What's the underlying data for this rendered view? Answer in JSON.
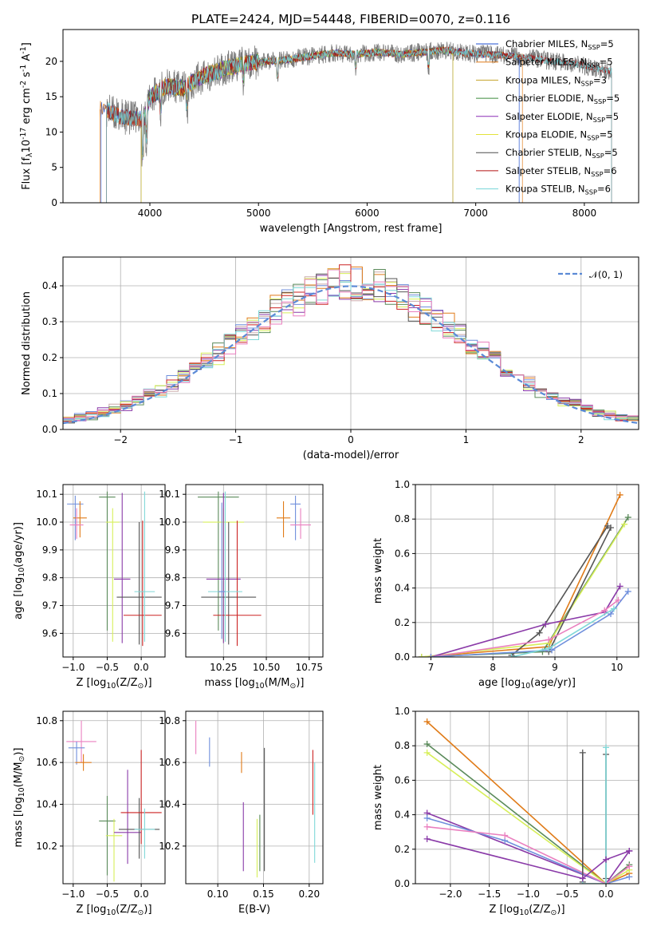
{
  "title": "PLATE=2424, MJD=54448, FIBERID=0070, z=0.116",
  "colors": {
    "cm": "#1f4fd0",
    "sm": "#e07b18",
    "km": "#c5a32a",
    "ce": "#3c8a3c",
    "se": "#8b2fb5",
    "ke": "#e3e33a",
    "cs": "#4d4d4d",
    "ss": "#b31212",
    "ks": "#74d4d8",
    "c1": "#6f8fdc",
    "c2": "#e07b18",
    "c3": "#c9a9a9",
    "c4": "#5a8a5a",
    "c5": "#8a3aa8",
    "c6": "#d7ef5a",
    "c7": "#555555",
    "c8": "#cc2222",
    "c9": "#7fd8d8",
    "c10": "#ea7fbf"
  },
  "chart_data": [
    {
      "id": "spectrum",
      "type": "line",
      "xlabel": "wavelength [Angstrom, rest frame]",
      "ylabel": "Flux [f$_{\\lambda}$10$^{-17}$ erg cm$^{-2}$ s$^{-1}$ A$^{-1}$]",
      "xlim": [
        3200,
        8500
      ],
      "ylim": [
        0,
        24.5
      ],
      "xticks": [
        "4000",
        "5000",
        "6000",
        "7000",
        "8000"
      ],
      "xtickvals": [
        4000,
        5000,
        6000,
        7000,
        8000
      ],
      "yticks": [
        "0",
        "5",
        "10",
        "15",
        "20"
      ],
      "ytickvals": [
        0,
        5,
        10,
        15,
        20
      ],
      "grid": false,
      "legend_position": "upper-right",
      "continuum": [
        [
          3600,
          13.2
        ],
        [
          3700,
          12.3
        ],
        [
          3800,
          12.0
        ],
        [
          3900,
          12.0
        ],
        [
          3950,
          11.8
        ],
        [
          4000,
          15.0
        ],
        [
          4150,
          16.5
        ],
        [
          4300,
          16.2
        ],
        [
          4500,
          18.0
        ],
        [
          4700,
          19.0
        ],
        [
          4900,
          19.8
        ],
        [
          5100,
          20.0
        ],
        [
          5300,
          20.3
        ],
        [
          5500,
          20.8
        ],
        [
          5700,
          21.2
        ],
        [
          5900,
          21.0
        ],
        [
          6100,
          21.3
        ],
        [
          6300,
          21.0
        ],
        [
          6500,
          21.3
        ],
        [
          6700,
          21.6
        ],
        [
          6900,
          21.2
        ],
        [
          7100,
          21.0
        ],
        [
          7300,
          20.8
        ],
        [
          7500,
          20.5
        ],
        [
          7700,
          20.0
        ],
        [
          7900,
          19.7
        ],
        [
          8100,
          19.0
        ],
        [
          8250,
          18.6
        ]
      ],
      "series": [
        {
          "name": "Chabrier MILES, N$_{SSP}$=5",
          "color": "#1f4fd0",
          "range": [
            3550,
            7400
          ]
        },
        {
          "name": "Salpeter MILES, N$_{SSP}$=5",
          "color": "#e07b18",
          "range": [
            3540,
            7430
          ]
        },
        {
          "name": "Kroupa MILES, N$_{SSP}$=3",
          "color": "#c5a32a",
          "range": [
            3920,
            6790
          ]
        },
        {
          "name": "Chabrier ELODIE, N$_{SSP}$=5",
          "color": "#3c8a3c",
          "range": [
            3920,
            6790
          ]
        },
        {
          "name": "Salpeter ELODIE, N$_{SSP}$=5",
          "color": "#8b2fb5",
          "range": [
            3920,
            6790
          ]
        },
        {
          "name": "Kroupa ELODIE, N$_{SSP}$=5",
          "color": "#e3e33a",
          "range": [
            3920,
            6790
          ]
        },
        {
          "name": "Chabrier STELIB, N$_{SSP}$=5",
          "color": "#4d4d4d",
          "range": [
            3600,
            8250
          ]
        },
        {
          "name": "Salpeter STELIB, N$_{SSP}$=6",
          "color": "#b31212",
          "range": [
            3600,
            8250
          ]
        },
        {
          "name": "Kroupa STELIB, N$_{SSP}$=6",
          "color": "#74d4d8",
          "range": [
            3600,
            8250
          ]
        }
      ]
    },
    {
      "id": "residuals",
      "type": "line",
      "xlabel": "(data-model)/error",
      "ylabel": "Normed distribution",
      "xlim": [
        -2.5,
        2.5
      ],
      "ylim": [
        0,
        0.48
      ],
      "xticks": [
        "−2",
        "−1",
        "0",
        "1",
        "2"
      ],
      "xtickvals": [
        -2,
        -1,
        0,
        1,
        2
      ],
      "yticks": [
        "0.0",
        "0.1",
        "0.2",
        "0.3",
        "0.4"
      ],
      "ytickvals": [
        0,
        0.1,
        0.2,
        0.3,
        0.4
      ],
      "grid": true,
      "legend_position": "upper-right",
      "reference": {
        "name": "$\\mathcal{N}(0,1)$",
        "label": "𝒩(0, 1)",
        "style": "dashed",
        "color": "#5b8ad6"
      },
      "hist_colors": [
        "#6f8fdc",
        "#e07b18",
        "#c9a9a9",
        "#5a8a5a",
        "#8a3aa8",
        "#d7ef5a",
        "#555555",
        "#cc2222",
        "#7fd8d8",
        "#ea7fbf"
      ],
      "bin_edges_range": [
        -2.5,
        2.5
      ],
      "bins": 50
    },
    {
      "id": "age-vs-Z",
      "type": "scatter",
      "xlabel": "Z [log$_{10}$(Z/Z$_\\odot$)]",
      "ylabel": "age  [log$_{10}$(age/yr)]",
      "xlim": [
        -1.15,
        0.35
      ],
      "ylim": [
        9.515,
        10.135
      ],
      "xticks": [
        "−1.0",
        "−0.5",
        "0.0"
      ],
      "xtickvals": [
        -1,
        -0.5,
        0
      ],
      "yticks": [
        "9.6",
        "9.7",
        "9.8",
        "9.9",
        "10.0",
        "10.1"
      ],
      "ytickvals": [
        9.6,
        9.7,
        9.8,
        9.9,
        10.0,
        10.1
      ],
      "grid": true,
      "points": [
        {
          "x": -0.97,
          "y": 10.065,
          "xerr": 0.12,
          "yerr": [
            0.13,
            0.03
          ],
          "c": "#6f8fdc"
        },
        {
          "x": -0.9,
          "y": 10.015,
          "xerr": 0.1,
          "yerr": [
            0.07,
            0.06
          ],
          "c": "#e07b18"
        },
        {
          "x": -0.95,
          "y": 9.99,
          "xerr": 0.1,
          "yerr": [
            0.05,
            0.06
          ],
          "c": "#ea7fbf"
        },
        {
          "x": -0.5,
          "y": 10.09,
          "xerr": 0.12,
          "yerr": [
            0.48,
            0.02
          ],
          "c": "#5a8a5a"
        },
        {
          "x": -0.42,
          "y": 10.0,
          "xerr": 0.1,
          "yerr": [
            0.43,
            0.05
          ],
          "c": "#d7ef5a"
        },
        {
          "x": -0.28,
          "y": 9.795,
          "xerr": 0.12,
          "yerr": [
            0.23,
            0.31
          ],
          "c": "#8a3aa8"
        },
        {
          "x": -0.03,
          "y": 9.73,
          "xerr": 0.33,
          "yerr": [
            0.17,
            0.27
          ],
          "c": "#555555"
        },
        {
          "x": 0.02,
          "y": 9.665,
          "xerr": 0.28,
          "yerr": [
            0.11,
            0.34
          ],
          "c": "#cc2222"
        },
        {
          "x": 0.05,
          "y": 9.75,
          "xerr": 0.15,
          "yerr": [
            0.18,
            0.36
          ],
          "c": "#7fd8d8"
        }
      ]
    },
    {
      "id": "age-vs-mass",
      "type": "scatter",
      "xlabel": "mass [log$_{10}$(M/M$_\\odot$)]",
      "ylabel": "",
      "xlim": [
        10.03,
        10.83
      ],
      "ylim": [
        9.515,
        10.135
      ],
      "xticks": [
        "10.25",
        "10.50",
        "10.75"
      ],
      "xtickvals": [
        10.25,
        10.5,
        10.75
      ],
      "yticks": [
        "9.6",
        "9.7",
        "9.8",
        "9.9",
        "10.0",
        "10.1"
      ],
      "ytickvals": [
        9.6,
        9.7,
        9.8,
        9.9,
        10.0,
        10.1
      ],
      "grid": true,
      "points": [
        {
          "x": 10.67,
          "y": 10.065,
          "xerr": 0.03,
          "yerr": [
            0.13,
            0.03
          ],
          "c": "#6f8fdc"
        },
        {
          "x": 10.6,
          "y": 10.015,
          "xerr": 0.04,
          "yerr": [
            0.07,
            0.06
          ],
          "c": "#e07b18"
        },
        {
          "x": 10.7,
          "y": 9.99,
          "xerr": 0.06,
          "yerr": [
            0.05,
            0.06
          ],
          "c": "#ea7fbf"
        },
        {
          "x": 10.22,
          "y": 10.09,
          "xerr": 0.12,
          "yerr": [
            0.48,
            0.02
          ],
          "c": "#5a8a5a"
        },
        {
          "x": 10.25,
          "y": 10.0,
          "xerr": 0.12,
          "yerr": [
            0.43,
            0.05
          ],
          "c": "#d7ef5a"
        },
        {
          "x": 10.25,
          "y": 9.795,
          "xerr": 0.1,
          "yerr": [
            0.23,
            0.31
          ],
          "c": "#8a3aa8"
        },
        {
          "x": 10.28,
          "y": 9.73,
          "xerr": 0.16,
          "yerr": [
            0.17,
            0.27
          ],
          "c": "#555555"
        },
        {
          "x": 10.33,
          "y": 9.665,
          "xerr": 0.14,
          "yerr": [
            0.11,
            0.34
          ],
          "c": "#cc2222"
        },
        {
          "x": 10.26,
          "y": 9.75,
          "xerr": 0.1,
          "yerr": [
            0.18,
            0.36
          ],
          "c": "#7fd8d8"
        },
        {
          "x": 10.24,
          "y": 9.75,
          "xerr": 0.02,
          "yerr": [
            0.17,
            0.32
          ],
          "c": "#6f8fdc"
        }
      ]
    },
    {
      "id": "massweight-vs-age",
      "type": "line",
      "xlabel": "age  [log$_{10}$(age/yr)]",
      "ylabel": "mass weight",
      "xlim": [
        6.75,
        10.35
      ],
      "ylim": [
        0,
        1.0
      ],
      "xticks": [
        "7",
        "8",
        "9",
        "10"
      ],
      "xtickvals": [
        7,
        8,
        9,
        10
      ],
      "yticks": [
        "0.0",
        "0.2",
        "0.4",
        "0.6",
        "0.8",
        "1.0"
      ],
      "ytickvals": [
        0,
        0.2,
        0.4,
        0.6,
        0.8,
        1.0
      ],
      "grid": true,
      "series": [
        {
          "c": "#e07b18",
          "x": [
            6.85,
            8.9,
            10.05
          ],
          "y": [
            0.0,
            0.06,
            0.94
          ]
        },
        {
          "c": "#5a8a5a",
          "x": [
            6.85,
            8.8,
            10.18
          ],
          "y": [
            0.0,
            0.03,
            0.81
          ]
        },
        {
          "c": "#d7ef5a",
          "x": [
            6.85,
            8.9,
            10.12
          ],
          "y": [
            0.0,
            0.08,
            0.77
          ]
        },
        {
          "c": "#555555",
          "x": [
            8.3,
            8.75,
            9.85
          ],
          "y": [
            0.01,
            0.14,
            0.76
          ]
        },
        {
          "c": "#555555",
          "x": [
            8.9,
            9.9
          ],
          "y": [
            0.03,
            0.75
          ]
        },
        {
          "c": "#8a3aa8",
          "x": [
            7.0,
            8.85,
            9.8,
            10.05
          ],
          "y": [
            0.0,
            0.19,
            0.26,
            0.41
          ]
        },
        {
          "c": "#ea7fbf",
          "x": [
            7.0,
            8.9,
            9.8,
            10.02
          ],
          "y": [
            0.0,
            0.1,
            0.27,
            0.33
          ]
        },
        {
          "c": "#6f8fdc",
          "x": [
            7.0,
            8.95,
            9.9,
            10.18
          ],
          "y": [
            0.0,
            0.04,
            0.25,
            0.38
          ]
        },
        {
          "c": "#7fd8d8",
          "x": [
            8.3,
            8.9,
            9.95
          ],
          "y": [
            0.0,
            0.05,
            0.28
          ]
        }
      ]
    },
    {
      "id": "mass-vs-Z",
      "type": "scatter",
      "xlabel": "Z [log$_{10}$(Z/Z$_\\odot$)]",
      "ylabel": "mass [log$_{10}$(M/M$_\\odot$)]",
      "xlim": [
        -1.15,
        0.35
      ],
      "ylim": [
        10.02,
        10.845
      ],
      "xticks": [
        "−1.0",
        "−0.5",
        "0.0"
      ],
      "xtickvals": [
        -1,
        -0.5,
        0
      ],
      "yticks": [
        "10.2",
        "10.4",
        "10.6",
        "10.8"
      ],
      "ytickvals": [
        10.2,
        10.4,
        10.6,
        10.8
      ],
      "grid": true,
      "points": [
        {
          "x": -0.88,
          "y": 10.7,
          "xerr": 0.22,
          "yerr": [
            0.1,
            0.1
          ],
          "c": "#ea7fbf"
        },
        {
          "x": -0.95,
          "y": 10.67,
          "xerr": 0.12,
          "yerr": [
            0.08,
            0.03
          ],
          "c": "#6f8fdc"
        },
        {
          "x": -0.85,
          "y": 10.6,
          "xerr": 0.12,
          "yerr": [
            0.04,
            0.04
          ],
          "c": "#e07b18"
        },
        {
          "x": -0.5,
          "y": 10.32,
          "xerr": 0.12,
          "yerr": [
            0.26,
            0.12
          ],
          "c": "#5a8a5a"
        },
        {
          "x": -0.4,
          "y": 10.25,
          "xerr": 0.12,
          "yerr": [
            0.22,
            0.08
          ],
          "c": "#d7ef5a"
        },
        {
          "x": -0.2,
          "y": 10.265,
          "xerr": 0.2,
          "yerr": [
            0.15,
            0.3
          ],
          "c": "#8a3aa8"
        },
        {
          "x": -0.03,
          "y": 10.28,
          "xerr": 0.3,
          "yerr": [
            0.14,
            0.15
          ],
          "c": "#555555"
        },
        {
          "x": 0.0,
          "y": 10.36,
          "xerr": 0.3,
          "yerr": [
            0.15,
            0.3
          ],
          "c": "#cc2222"
        },
        {
          "x": 0.05,
          "y": 10.28,
          "xerr": 0.15,
          "yerr": [
            0.14,
            0.1
          ],
          "c": "#7fd8d8"
        }
      ]
    },
    {
      "id": "mass-vs-ebv",
      "type": "scatter",
      "xlabel": "E(B-V)",
      "ylabel": "",
      "xlim": [
        0.065,
        0.215
      ],
      "ylim": [
        10.02,
        10.845
      ],
      "xticks": [
        "0.10",
        "0.15",
        "0.20"
      ],
      "xtickvals": [
        0.1,
        0.15,
        0.2
      ],
      "yticks": [
        "10.2",
        "10.4",
        "10.6",
        "10.8"
      ],
      "ytickvals": [
        10.2,
        10.4,
        10.6,
        10.8
      ],
      "grid": true,
      "points": [
        {
          "x": 0.076,
          "y": 10.72,
          "yerr": [
            0.08,
            0.08
          ],
          "c": "#ea7fbf"
        },
        {
          "x": 0.091,
          "y": 10.65,
          "yerr": [
            0.07,
            0.07
          ],
          "c": "#6f8fdc"
        },
        {
          "x": 0.126,
          "y": 10.6,
          "yerr": [
            0.05,
            0.05
          ],
          "c": "#e07b18"
        },
        {
          "x": 0.128,
          "y": 10.25,
          "yerr": [
            0.17,
            0.16
          ],
          "c": "#8a3aa8"
        },
        {
          "x": 0.143,
          "y": 10.25,
          "yerr": [
            0.2,
            0.08
          ],
          "c": "#d7ef5a"
        },
        {
          "x": 0.146,
          "y": 10.28,
          "yerr": [
            0.2,
            0.07
          ],
          "c": "#5a8a5a"
        },
        {
          "x": 0.151,
          "y": 10.4,
          "yerr": [
            0.32,
            0.27
          ],
          "c": "#555555"
        },
        {
          "x": 0.204,
          "y": 10.55,
          "yerr": [
            0.2,
            0.11
          ],
          "c": "#cc2222"
        },
        {
          "x": 0.206,
          "y": 10.4,
          "yerr": [
            0.28,
            0.2
          ],
          "c": "#7fd8d8"
        }
      ]
    },
    {
      "id": "massweight-vs-Z",
      "type": "line",
      "xlabel": "Z [log$_{10}$(Z/Z$_\\odot$)]",
      "ylabel": "mass weight",
      "xlim": [
        -2.45,
        0.42
      ],
      "ylim": [
        0,
        1.0
      ],
      "xticks": [
        "−2.0",
        "−1.5",
        "−1.0",
        "−0.5",
        "0.0"
      ],
      "xtickvals": [
        -2,
        -1.5,
        -1,
        -0.5,
        0
      ],
      "yticks": [
        "0.0",
        "0.2",
        "0.4",
        "0.6",
        "0.8",
        "1.0"
      ],
      "ytickvals": [
        0,
        0.2,
        0.4,
        0.6,
        0.8,
        1.0
      ],
      "grid": true,
      "series": [
        {
          "c": "#e07b18",
          "x": [
            -2.3,
            0.0,
            0.3
          ],
          "y": [
            0.94,
            0.0,
            0.06
          ]
        },
        {
          "c": "#5a8a5a",
          "x": [
            -2.3,
            0.0,
            0.3
          ],
          "y": [
            0.81,
            0.0,
            0.11
          ]
        },
        {
          "c": "#d7ef5a",
          "x": [
            -2.3,
            0.0,
            0.3
          ],
          "y": [
            0.76,
            0.0,
            0.08
          ]
        },
        {
          "c": "#8a3aa8",
          "x": [
            -2.3,
            0.0,
            0.3
          ],
          "y": [
            0.41,
            0.0,
            0.19
          ]
        },
        {
          "c": "#6f8fdc",
          "x": [
            -2.3,
            -1.3,
            0.0,
            0.3
          ],
          "y": [
            0.38,
            0.25,
            0.0,
            0.04
          ]
        },
        {
          "c": "#ea7fbf",
          "x": [
            -2.3,
            -1.3,
            0.0,
            0.3
          ],
          "y": [
            0.33,
            0.28,
            0.0,
            0.1
          ]
        },
        {
          "c": "#555555",
          "x": [
            -0.3,
            -0.3
          ],
          "y": [
            0.01,
            0.76
          ]
        },
        {
          "c": "#555555",
          "x": [
            0.0,
            0.0
          ],
          "y": [
            0.03,
            0.75
          ]
        },
        {
          "c": "#7fd8d8",
          "x": [
            -0.3,
            0.0,
            0.0
          ],
          "y": [
            0.0,
            0.0,
            0.79
          ]
        },
        {
          "c": "#8a3aa8",
          "x": [
            -2.3,
            -0.3,
            0.0,
            0.3
          ],
          "y": [
            0.26,
            0.03,
            0.14,
            0.19
          ]
        }
      ]
    }
  ]
}
